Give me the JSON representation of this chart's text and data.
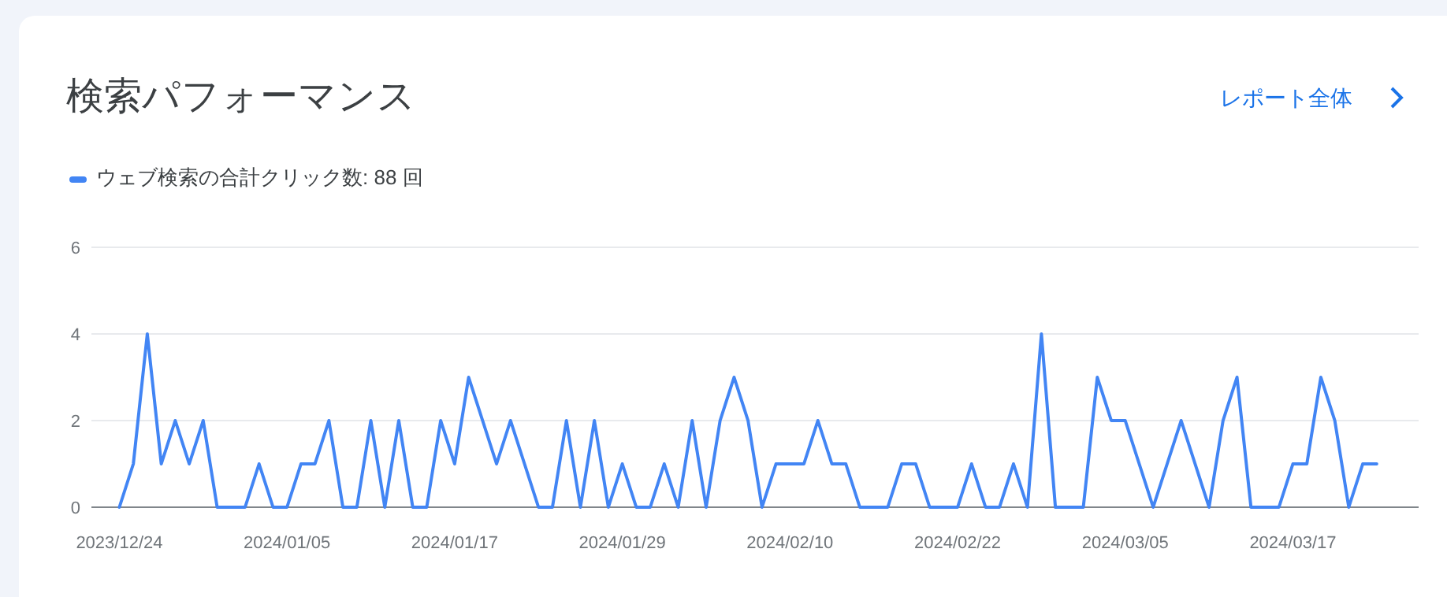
{
  "chart_data": {
    "type": "line",
    "title": "検索パフォーマンス",
    "annotations": [
      "レポート全体"
    ],
    "x": [
      "2023-12-24",
      "2023-12-25",
      "2023-12-26",
      "2023-12-27",
      "2023-12-28",
      "2023-12-29",
      "2023-12-30",
      "2023-12-31",
      "2024-01-01",
      "2024-01-02",
      "2024-01-03",
      "2024-01-04",
      "2024-01-05",
      "2024-01-06",
      "2024-01-07",
      "2024-01-08",
      "2024-01-09",
      "2024-01-10",
      "2024-01-11",
      "2024-01-12",
      "2024-01-13",
      "2024-01-14",
      "2024-01-15",
      "2024-01-16",
      "2024-01-17",
      "2024-01-18",
      "2024-01-19",
      "2024-01-20",
      "2024-01-21",
      "2024-01-22",
      "2024-01-23",
      "2024-01-24",
      "2024-01-25",
      "2024-01-26",
      "2024-01-27",
      "2024-01-28",
      "2024-01-29",
      "2024-01-30",
      "2024-01-31",
      "2024-02-01",
      "2024-02-02",
      "2024-02-03",
      "2024-02-04",
      "2024-02-05",
      "2024-02-06",
      "2024-02-07",
      "2024-02-08",
      "2024-02-09",
      "2024-02-10",
      "2024-02-11",
      "2024-02-12",
      "2024-02-13",
      "2024-02-14",
      "2024-02-15",
      "2024-02-16",
      "2024-02-17",
      "2024-02-18",
      "2024-02-19",
      "2024-02-20",
      "2024-02-21",
      "2024-02-22",
      "2024-02-23",
      "2024-02-24",
      "2024-02-25",
      "2024-02-26",
      "2024-02-27",
      "2024-02-28",
      "2024-02-29",
      "2024-03-01",
      "2024-03-02",
      "2024-03-03",
      "2024-03-04",
      "2024-03-05",
      "2024-03-06",
      "2024-03-07",
      "2024-03-08",
      "2024-03-09",
      "2024-03-10",
      "2024-03-11",
      "2024-03-12",
      "2024-03-13",
      "2024-03-14",
      "2024-03-15",
      "2024-03-16",
      "2024-03-17",
      "2024-03-18",
      "2024-03-19",
      "2024-03-20",
      "2024-03-21",
      "2024-03-22",
      "2024-03-23"
    ],
    "series": [
      {
        "name": "ウェブ検索の合計クリック数: 88 回",
        "color": "#4285f4",
        "values": [
          0,
          1,
          4,
          1,
          2,
          1,
          2,
          0,
          0,
          0,
          1,
          0,
          0,
          1,
          1,
          2,
          0,
          0,
          2,
          0,
          2,
          0,
          0,
          2,
          1,
          3,
          2,
          1,
          2,
          1,
          0,
          0,
          2,
          0,
          2,
          0,
          1,
          0,
          0,
          1,
          0,
          2,
          0,
          2,
          3,
          2,
          0,
          1,
          1,
          1,
          2,
          1,
          1,
          0,
          0,
          0,
          1,
          1,
          0,
          0,
          0,
          1,
          0,
          0,
          1,
          0,
          4,
          0,
          0,
          0,
          3,
          2,
          2,
          1,
          0,
          1,
          2,
          1,
          0,
          2,
          3,
          0,
          0,
          0,
          1,
          1,
          3,
          2,
          0,
          1,
          1
        ]
      }
    ],
    "xlim": [
      "2023-12-22",
      "2024-03-26"
    ],
    "xticks": [
      {
        "value": "2023-12-24",
        "label": "2023/12/24"
      },
      {
        "value": "2024-01-05",
        "label": "2024/01/05"
      },
      {
        "value": "2024-01-17",
        "label": "2024/01/17"
      },
      {
        "value": "2024-01-29",
        "label": "2024/01/29"
      },
      {
        "value": "2024-02-10",
        "label": "2024/02/10"
      },
      {
        "value": "2024-02-22",
        "label": "2024/02/22"
      },
      {
        "value": "2024-03-05",
        "label": "2024/03/05"
      },
      {
        "value": "2024-03-17",
        "label": "2024/03/17"
      }
    ],
    "ylim": [
      0,
      6
    ],
    "yticks": [
      0,
      2,
      4,
      6
    ],
    "grid": "y",
    "legend": "top left",
    "marker": "none",
    "line_style": "solid"
  }
}
